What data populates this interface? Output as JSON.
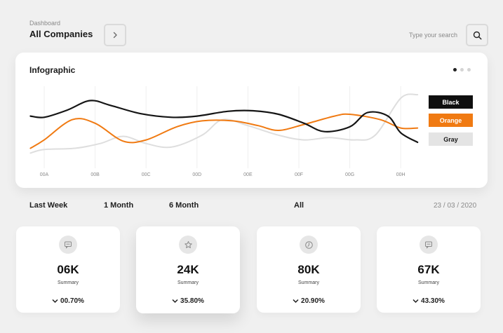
{
  "header": {
    "subtitle": "Dashboard",
    "title": "All Companies",
    "next_icon": "chevron-right-icon",
    "search_placeholder": "Type your search",
    "search_icon": "search-icon"
  },
  "card": {
    "title": "Infographic",
    "pagination": {
      "count": 3,
      "active": 0
    }
  },
  "chart_data": {
    "type": "line",
    "title": "",
    "categories": [
      "00A",
      "00B",
      "00C",
      "00D",
      "00E",
      "00F",
      "00G",
      "00H"
    ],
    "x_range": [
      -0.27,
      7.33
    ],
    "ylim": [
      0,
      100
    ],
    "grid": true,
    "legend_position": "right",
    "series": [
      {
        "name": "Black",
        "color": "#151515",
        "points": [
          [
            -0.27,
            64
          ],
          [
            0,
            62
          ],
          [
            0.45,
            74
          ],
          [
            0.9,
            90
          ],
          [
            1.3,
            82
          ],
          [
            1.9,
            68
          ],
          [
            2.5,
            62
          ],
          [
            3.0,
            64
          ],
          [
            3.6,
            72
          ],
          [
            4.1,
            73
          ],
          [
            4.6,
            67
          ],
          [
            5.1,
            52
          ],
          [
            5.5,
            38
          ],
          [
            6.0,
            46
          ],
          [
            6.35,
            70
          ],
          [
            6.75,
            64
          ],
          [
            7.0,
            36
          ],
          [
            7.33,
            20
          ]
        ]
      },
      {
        "name": "Orange",
        "color": "#f07a12",
        "points": [
          [
            -0.27,
            10
          ],
          [
            0,
            24
          ],
          [
            0.55,
            58
          ],
          [
            1.0,
            52
          ],
          [
            1.55,
            22
          ],
          [
            2.0,
            24
          ],
          [
            2.6,
            46
          ],
          [
            3.1,
            56
          ],
          [
            3.7,
            56
          ],
          [
            4.2,
            48
          ],
          [
            4.6,
            40
          ],
          [
            5.1,
            50
          ],
          [
            5.7,
            64
          ],
          [
            6.0,
            67
          ],
          [
            6.6,
            58
          ],
          [
            7.0,
            44
          ],
          [
            7.33,
            44
          ]
        ]
      },
      {
        "name": "Gray",
        "color": "#dedede",
        "points": [
          [
            -0.27,
            2
          ],
          [
            0,
            8
          ],
          [
            0.6,
            10
          ],
          [
            1.1,
            18
          ],
          [
            1.55,
            30
          ],
          [
            2.0,
            18
          ],
          [
            2.5,
            12
          ],
          [
            3.1,
            32
          ],
          [
            3.5,
            58
          ],
          [
            4.0,
            48
          ],
          [
            4.6,
            32
          ],
          [
            5.1,
            24
          ],
          [
            5.6,
            28
          ],
          [
            6.1,
            24
          ],
          [
            6.5,
            32
          ],
          [
            7.0,
            94
          ],
          [
            7.33,
            100
          ]
        ]
      }
    ]
  },
  "legend": [
    {
      "label": "Black",
      "color": "#0f0f0f"
    },
    {
      "label": "Orange",
      "color": "#f07a12"
    },
    {
      "label": "Gray",
      "color": "#e4e4e4"
    }
  ],
  "periods": {
    "last_week": "Last Week",
    "one_month": "1 Month",
    "six_month": "6 Month",
    "all": "All",
    "date": "23 / 03 / 2020"
  },
  "stats": [
    {
      "icon": "message-icon",
      "value": "06K",
      "label": "Summary",
      "change": "00.70%",
      "change_icon": "chevron-down-icon"
    },
    {
      "icon": "star-icon",
      "value": "24K",
      "label": "Summary",
      "change": "35.80%",
      "change_icon": "chevron-down-icon"
    },
    {
      "icon": "clock-icon",
      "value": "80K",
      "label": "Summary",
      "change": "20.90%",
      "change_icon": "chevron-down-icon"
    },
    {
      "icon": "message-icon",
      "value": "67K",
      "label": "Summary",
      "change": "43.30%",
      "change_icon": "chevron-down-icon"
    }
  ]
}
